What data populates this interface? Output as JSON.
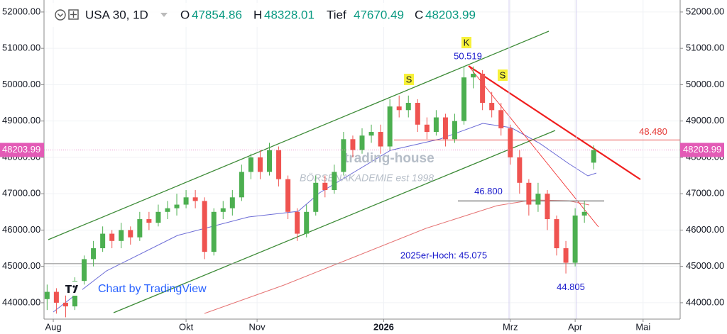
{
  "chart_data": {
    "type": "candlestick",
    "header": {
      "symbol": "USA 30, 1D",
      "open": "O",
      "high": "H",
      "low": "Tief",
      "close": "C"
    },
    "attribution": "Chart by TradingView",
    "watermark": [
      "trading-house",
      "BÖRSENAKADEMIE est 1998"
    ],
    "up_color": "#4caf50",
    "down_color": "#ef5350",
    "grid": true,
    "xlim": [
      0,
      206
    ],
    "ylim": [
      43140,
      52330
    ],
    "xticks": [
      {
        "value": 3,
        "label": "Aug"
      },
      {
        "value": 46,
        "label": "Okt"
      },
      {
        "value": 69,
        "label": "Nov"
      },
      {
        "value": 110,
        "label": "2026"
      },
      {
        "value": 151,
        "label": "Mrz"
      },
      {
        "value": 172,
        "label": "Apr"
      },
      {
        "value": 194,
        "label": "Mai"
      }
    ],
    "yticks": [
      {
        "value": 44000,
        "label": "44000.00"
      },
      {
        "value": 45000,
        "label": "45000.00"
      },
      {
        "value": 46000,
        "label": "46000.00"
      },
      {
        "value": 47000,
        "label": "47000.00"
      },
      {
        "value": 48000,
        "label": "48000.00"
      },
      {
        "value": 49000,
        "label": "49000.00"
      },
      {
        "value": 50000,
        "label": "50000.00"
      },
      {
        "value": 51000,
        "label": "51000.00"
      },
      {
        "value": 52000,
        "label": "52000.00"
      }
    ],
    "candles": {
      "x": [
        1,
        4,
        7,
        10,
        13,
        16,
        19,
        22,
        25,
        28,
        31,
        34,
        37,
        40,
        43,
        46,
        49,
        52,
        55,
        58,
        61,
        64,
        67,
        70,
        73,
        76,
        79,
        82,
        85,
        88,
        91,
        94,
        97,
        100,
        103,
        106,
        109,
        112,
        115,
        118,
        121,
        124,
        127,
        130,
        133,
        136,
        139,
        142,
        145,
        148,
        151,
        154,
        157,
        160,
        163,
        166,
        169,
        172,
        175,
        178
      ],
      "open": [
        44100,
        44300,
        44000,
        43900,
        44600,
        45200,
        45500,
        45900,
        45700,
        46000,
        45800,
        46300,
        46200,
        46500,
        46600,
        46700,
        46900,
        46800,
        45400,
        46500,
        46600,
        46900,
        47600,
        48000,
        47600,
        48200,
        47400,
        46500,
        45900,
        46500,
        47300,
        47100,
        47600,
        48500,
        48200,
        48600,
        48700,
        48300,
        49400,
        49300,
        49500,
        48900,
        48700,
        49100,
        48500,
        49000,
        50200,
        50300,
        49500,
        49300,
        48800,
        48000,
        47300,
        46700,
        47000,
        46300,
        45500,
        45100,
        46400,
        47854.86
      ],
      "high": [
        44500,
        44400,
        44200,
        44700,
        45300,
        45700,
        46100,
        46000,
        46200,
        46100,
        46500,
        46500,
        46700,
        46800,
        47000,
        47100,
        47100,
        46900,
        46600,
        46800,
        47100,
        47800,
        48100,
        48200,
        48400,
        48300,
        47500,
        46600,
        46700,
        47500,
        47500,
        47800,
        48700,
        48600,
        48800,
        48900,
        48900,
        49600,
        49700,
        49700,
        49600,
        49100,
        49300,
        49200,
        49200,
        50519,
        50500,
        50400,
        49800,
        49500,
        48900,
        48200,
        47400,
        47300,
        47100,
        46400,
        45700,
        46600,
        46800,
        48328.01
      ],
      "low": [
        43800,
        43700,
        43600,
        43800,
        44500,
        45000,
        45400,
        45500,
        45500,
        45600,
        45700,
        46000,
        46100,
        46300,
        46400,
        46600,
        46600,
        45200,
        45300,
        46300,
        46400,
        46800,
        47400,
        47400,
        47500,
        47200,
        46300,
        45700,
        45800,
        46400,
        46900,
        47000,
        47500,
        48000,
        48100,
        48400,
        48100,
        48200,
        49100,
        49100,
        48700,
        48500,
        48600,
        48300,
        48400,
        48900,
        49900,
        49300,
        49100,
        48600,
        47800,
        47000,
        46400,
        46500,
        46000,
        45300,
        44805,
        45000,
        46200,
        47670.49
      ],
      "close": [
        44300,
        44000,
        43900,
        44600,
        45200,
        45500,
        45900,
        45700,
        46000,
        45800,
        46300,
        46200,
        46500,
        46600,
        46700,
        46900,
        46800,
        45400,
        46500,
        46600,
        46900,
        47600,
        48000,
        47600,
        48200,
        47400,
        46500,
        45900,
        46500,
        47300,
        47100,
        47600,
        48500,
        48200,
        48600,
        48700,
        48300,
        49400,
        49300,
        49500,
        48900,
        48700,
        49100,
        48500,
        49000,
        50200,
        50300,
        49500,
        49300,
        48800,
        48000,
        47300,
        46700,
        47000,
        46300,
        45500,
        45100,
        46400,
        46500,
        48203.99
      ]
    },
    "levels": [
      {
        "value": 48480,
        "label": "48.480",
        "color": "#e53935"
      },
      {
        "value": 46800,
        "label": "46.800",
        "color": "#1a1acc"
      },
      {
        "value": 45075,
        "label": "2025er-Hoch: 45.075",
        "color": "#1a1acc"
      },
      {
        "value": 50519,
        "label": "50.519",
        "color": "#1a1acc"
      },
      {
        "value": 44805,
        "label": "44.805",
        "color": "#1a1acc"
      }
    ],
    "markers": [
      "S",
      "K",
      "S"
    ]
  }
}
